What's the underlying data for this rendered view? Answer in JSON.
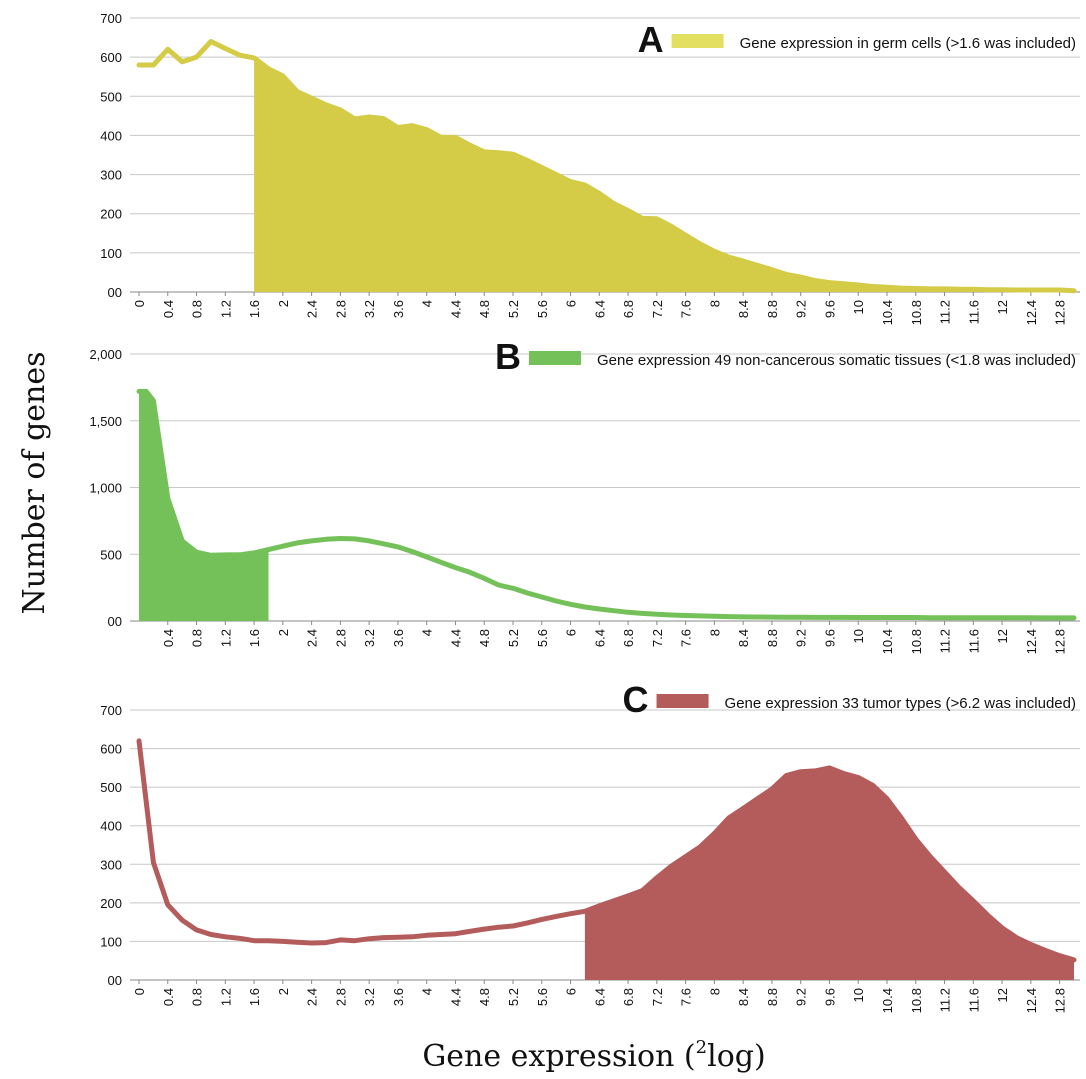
{
  "ylabel": "Number of genes",
  "xlabel_pre": "Gene expression (",
  "xlabel_sup": "2",
  "xlabel_post": "log)",
  "chart_data": [
    {
      "type": "area",
      "panel_letter": "A",
      "legend": "Gene expression in germ cells (>1.6 was included)",
      "color": "#d4cb46",
      "legend_color": "#e3df60",
      "fill_mode": "above",
      "threshold": 1.6,
      "ylim": [
        0,
        700
      ],
      "yticks": [
        "00",
        "100",
        "200",
        "300",
        "400",
        "500",
        "600",
        "700"
      ],
      "ytick_values": [
        0,
        100,
        200,
        300,
        400,
        500,
        600,
        700
      ],
      "xticks": [
        "0",
        "0.4",
        "0.8",
        "1.2",
        "1.6",
        "2",
        "2.4",
        "2.8",
        "3.2",
        "3.6",
        "4",
        "4.4",
        "4.8",
        "5.2",
        "5.6",
        "6",
        "6.4",
        "6.8",
        "7.2",
        "7.6",
        "8",
        "8.4",
        "8.8",
        "9.2",
        "9.6",
        "10",
        "10.4",
        "10.8",
        "11.2",
        "11.6",
        "12",
        "12.4",
        "12.8"
      ],
      "x": [
        0,
        0.2,
        0.4,
        0.6,
        0.8,
        1.0,
        1.2,
        1.4,
        1.6,
        1.8,
        2.0,
        2.2,
        2.4,
        2.6,
        2.8,
        3.0,
        3.2,
        3.4,
        3.6,
        3.8,
        4.0,
        4.2,
        4.4,
        4.6,
        4.8,
        5.0,
        5.2,
        5.4,
        5.6,
        5.8,
        6.0,
        6.2,
        6.4,
        6.6,
        6.8,
        7.0,
        7.2,
        7.4,
        7.6,
        7.8,
        8.0,
        8.2,
        8.4,
        8.6,
        8.8,
        9.0,
        9.2,
        9.4,
        9.6,
        9.8,
        10.0,
        10.2,
        10.4,
        10.6,
        10.8,
        11.0,
        11.2,
        11.4,
        11.6,
        11.8,
        12.0,
        12.2,
        12.4,
        12.6,
        12.8,
        13.0
      ],
      "y": [
        580,
        580,
        620,
        588,
        600,
        640,
        622,
        605,
        598,
        570,
        552,
        512,
        495,
        478,
        465,
        442,
        447,
        443,
        420,
        425,
        415,
        395,
        395,
        375,
        358,
        356,
        352,
        336,
        318,
        300,
        282,
        273,
        252,
        226,
        208,
        188,
        187,
        168,
        145,
        123,
        104,
        89,
        79,
        68,
        57,
        45,
        38,
        29,
        24,
        21,
        18,
        14,
        12,
        10,
        9,
        8,
        8,
        7,
        7,
        6,
        6,
        5,
        5,
        5,
        5,
        3
      ]
    },
    {
      "type": "area",
      "panel_letter": "B",
      "legend": "Gene expression 49 non-cancerous somatic tissues (<1.8 was included)",
      "color": "#74c15a",
      "legend_color": "#74c15a",
      "fill_mode": "below",
      "threshold": 1.8,
      "ylim": [
        0,
        2000
      ],
      "yticks": [
        "00",
        "500",
        "1,000",
        "1,500",
        "2,000"
      ],
      "ytick_values": [
        0,
        500,
        1000,
        1500,
        2000
      ],
      "xticks": [
        "0.4",
        "0.8",
        "1.2",
        "1.6",
        "2",
        "2.4",
        "2.8",
        "3.2",
        "3.6",
        "4",
        "4.4",
        "4.8",
        "5.2",
        "5.6",
        "6",
        "6.4",
        "6.8",
        "7.2",
        "7.6",
        "8",
        "8.4",
        "8.8",
        "9.2",
        "9.6",
        "10",
        "10.4",
        "10.8",
        "11.2",
        "11.6",
        "12",
        "12.4",
        "12.8"
      ],
      "x": [
        0,
        0.1,
        0.2,
        0.4,
        0.6,
        0.8,
        1.0,
        1.2,
        1.4,
        1.6,
        1.8,
        2.0,
        2.2,
        2.4,
        2.6,
        2.8,
        3.0,
        3.2,
        3.4,
        3.6,
        3.8,
        4.0,
        4.2,
        4.4,
        4.6,
        4.8,
        5.0,
        5.2,
        5.4,
        5.6,
        5.8,
        6.0,
        6.2,
        6.4,
        6.6,
        6.8,
        7.0,
        7.2,
        7.4,
        7.6,
        7.8,
        8.0,
        8.2,
        8.4,
        8.6,
        8.8,
        9.0,
        9.2,
        9.4,
        9.6,
        9.8,
        10.0,
        10.2,
        10.4,
        10.6,
        10.8,
        11.0,
        11.2,
        11.4,
        11.6,
        11.8,
        12.0,
        12.2,
        12.4,
        12.6,
        12.8,
        13.0
      ],
      "y": [
        1720,
        1720,
        1650,
        920,
        600,
        515,
        492,
        495,
        496,
        510,
        535,
        560,
        585,
        600,
        612,
        618,
        615,
        600,
        578,
        555,
        520,
        480,
        440,
        400,
        365,
        320,
        270,
        245,
        210,
        180,
        150,
        125,
        105,
        90,
        77,
        65,
        57,
        50,
        45,
        41,
        38,
        35,
        33,
        31,
        30,
        29,
        28,
        28,
        27,
        27,
        27,
        26,
        26,
        26,
        26,
        26,
        25,
        25,
        25,
        25,
        24,
        24,
        24,
        24,
        23,
        23,
        23
      ]
    },
    {
      "type": "area",
      "panel_letter": "C",
      "legend": "Gene expression 33 tumor types (>6.2 was included)",
      "color": "#b35c5b",
      "legend_color": "#b35c5b",
      "fill_mode": "above",
      "threshold": 6.2,
      "ylim": [
        0,
        700
      ],
      "yticks": [
        "00",
        "100",
        "200",
        "300",
        "400",
        "500",
        "600",
        "700"
      ],
      "ytick_values": [
        0,
        100,
        200,
        300,
        400,
        500,
        600,
        700
      ],
      "xticks": [
        "0",
        "0.4",
        "0.8",
        "1.2",
        "1.6",
        "2",
        "2.4",
        "2.8",
        "3.2",
        "3.6",
        "4",
        "4.4",
        "4.8",
        "5.2",
        "5.6",
        "6",
        "6.4",
        "6.8",
        "7.2",
        "7.6",
        "8",
        "8.4",
        "8.8",
        "9.2",
        "9.6",
        "10",
        "10.4",
        "10.8",
        "11.2",
        "11.6",
        "12",
        "12.4",
        "12.8"
      ],
      "x": [
        0,
        0.2,
        0.4,
        0.6,
        0.8,
        1.0,
        1.2,
        1.4,
        1.6,
        1.8,
        2.0,
        2.2,
        2.4,
        2.6,
        2.8,
        3.0,
        3.2,
        3.4,
        3.6,
        3.8,
        4.0,
        4.2,
        4.4,
        4.6,
        4.8,
        5.0,
        5.2,
        5.4,
        5.6,
        5.8,
        6.0,
        6.2,
        6.4,
        6.6,
        6.8,
        7.0,
        7.2,
        7.4,
        7.6,
        7.8,
        8.0,
        8.2,
        8.4,
        8.6,
        8.8,
        9.0,
        9.2,
        9.4,
        9.6,
        9.8,
        10.0,
        10.2,
        10.4,
        10.6,
        10.8,
        11.0,
        11.2,
        11.4,
        11.6,
        11.8,
        12.0,
        12.2,
        12.4,
        12.6,
        12.8,
        13.0
      ],
      "y": [
        620,
        305,
        195,
        155,
        130,
        118,
        112,
        108,
        102,
        102,
        100,
        98,
        96,
        97,
        104,
        102,
        107,
        110,
        111,
        112,
        116,
        118,
        120,
        126,
        132,
        137,
        140,
        148,
        157,
        165,
        172,
        178,
        192,
        205,
        218,
        232,
        265,
        295,
        320,
        345,
        380,
        420,
        445,
        470,
        495,
        530,
        540,
        542,
        550,
        535,
        525,
        505,
        470,
        420,
        365,
        320,
        280,
        240,
        205,
        168,
        135,
        110,
        92,
        77,
        63,
        52
      ]
    }
  ]
}
